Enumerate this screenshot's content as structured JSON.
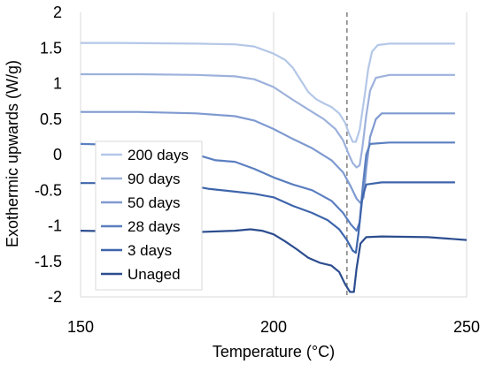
{
  "chart_data": {
    "type": "line",
    "title": "",
    "xlabel": "Temperature (°C)",
    "ylabel": "Exothermic upwards (W/g)",
    "xlim": [
      150,
      250
    ],
    "ylim": [
      -2,
      2
    ],
    "x_ticks": [
      150,
      200,
      250
    ],
    "y_ticks": [
      2,
      1.5,
      1,
      0.5,
      0,
      -0.5,
      -1,
      -1.5,
      -2
    ],
    "x_tick_labels": [
      "150",
      "200",
      "250"
    ],
    "y_tick_labels": [
      "2",
      "1.5",
      "1",
      "0.5",
      "0",
      "-0.5",
      "-1",
      "-1.5",
      "-2"
    ],
    "grid": "vertical major gridlines",
    "legend_position": "left",
    "reference_line": {
      "x": 219,
      "style": "dashed"
    },
    "series": [
      {
        "name": "200 days",
        "color": "#b4c7e7",
        "points": [
          [
            150,
            1.57
          ],
          [
            160,
            1.57
          ],
          [
            170,
            1.565
          ],
          [
            180,
            1.56
          ],
          [
            185,
            1.555
          ],
          [
            190,
            1.55
          ],
          [
            195,
            1.52
          ],
          [
            200,
            1.42
          ],
          [
            203,
            1.33
          ],
          [
            205,
            1.22
          ],
          [
            207,
            1.05
          ],
          [
            209,
            0.88
          ],
          [
            211,
            0.78
          ],
          [
            213,
            0.72
          ],
          [
            215,
            0.67
          ],
          [
            217,
            0.58
          ],
          [
            218.5,
            0.45
          ],
          [
            219.5,
            0.3
          ],
          [
            220.5,
            0.18
          ],
          [
            221.3,
            0.18
          ],
          [
            222.3,
            0.35
          ],
          [
            223.5,
            0.8
          ],
          [
            224.5,
            1.2
          ],
          [
            225.5,
            1.45
          ],
          [
            227,
            1.54
          ],
          [
            230,
            1.56
          ],
          [
            240,
            1.56
          ],
          [
            247,
            1.56
          ]
        ]
      },
      {
        "name": "90 days",
        "color": "#9db1dc",
        "points": [
          [
            150,
            1.13
          ],
          [
            165,
            1.13
          ],
          [
            180,
            1.12
          ],
          [
            190,
            1.1
          ],
          [
            195,
            1.06
          ],
          [
            200,
            0.95
          ],
          [
            205,
            0.77
          ],
          [
            210,
            0.6
          ],
          [
            213,
            0.5
          ],
          [
            216,
            0.36
          ],
          [
            218,
            0.2
          ],
          [
            219.5,
            0.0
          ],
          [
            220.5,
            -0.12
          ],
          [
            221.5,
            -0.18
          ],
          [
            222.3,
            -0.15
          ],
          [
            223,
            0.1
          ],
          [
            224,
            0.55
          ],
          [
            225,
            0.9
          ],
          [
            226.5,
            1.08
          ],
          [
            230,
            1.12
          ],
          [
            240,
            1.12
          ],
          [
            247,
            1.12
          ]
        ]
      },
      {
        "name": "50 days",
        "color": "#7f9ad0",
        "points": [
          [
            150,
            0.6
          ],
          [
            165,
            0.6
          ],
          [
            180,
            0.58
          ],
          [
            190,
            0.54
          ],
          [
            195,
            0.48
          ],
          [
            200,
            0.36
          ],
          [
            205,
            0.22
          ],
          [
            210,
            0.09
          ],
          [
            215,
            -0.08
          ],
          [
            218,
            -0.25
          ],
          [
            220,
            -0.45
          ],
          [
            221.5,
            -0.62
          ],
          [
            222.5,
            -0.68
          ],
          [
            223.3,
            -0.6
          ],
          [
            224,
            -0.2
          ],
          [
            225,
            0.25
          ],
          [
            226.5,
            0.5
          ],
          [
            228,
            0.58
          ],
          [
            235,
            0.58
          ],
          [
            247,
            0.58
          ]
        ]
      },
      {
        "name": "28 days",
        "color": "#5b7fc0",
        "points": [
          [
            150,
            0.15
          ],
          [
            165,
            0.13
          ],
          [
            175,
            0.08
          ],
          [
            185,
            -0.08
          ],
          [
            190,
            -0.1
          ],
          [
            195,
            -0.2
          ],
          [
            200,
            -0.32
          ],
          [
            205,
            -0.42
          ],
          [
            210,
            -0.5
          ],
          [
            215,
            -0.65
          ],
          [
            218,
            -0.82
          ],
          [
            220,
            -0.98
          ],
          [
            221.5,
            -1.07
          ],
          [
            222.3,
            -0.95
          ],
          [
            223,
            -0.5
          ],
          [
            224,
            0.0
          ],
          [
            225,
            0.15
          ],
          [
            230,
            0.17
          ],
          [
            240,
            0.17
          ],
          [
            247,
            0.17
          ]
        ]
      },
      {
        "name": "3 days",
        "color": "#3e65ab",
        "points": [
          [
            150,
            -0.4
          ],
          [
            165,
            -0.4
          ],
          [
            175,
            -0.4
          ],
          [
            183,
            -0.48
          ],
          [
            190,
            -0.52
          ],
          [
            195,
            -0.55
          ],
          [
            200,
            -0.6
          ],
          [
            205,
            -0.72
          ],
          [
            210,
            -0.82
          ],
          [
            214,
            -0.92
          ],
          [
            217,
            -1.05
          ],
          [
            219,
            -1.2
          ],
          [
            220.5,
            -1.35
          ],
          [
            221.3,
            -1.38
          ],
          [
            222,
            -1.1
          ],
          [
            223,
            -0.6
          ],
          [
            224,
            -0.42
          ],
          [
            228,
            -0.39
          ],
          [
            240,
            -0.39
          ],
          [
            247,
            -0.39
          ]
        ]
      },
      {
        "name": "Unaged",
        "color": "#2c4d8f",
        "points": [
          [
            150,
            -1.07
          ],
          [
            160,
            -1.08
          ],
          [
            170,
            -1.09
          ],
          [
            180,
            -1.09
          ],
          [
            190,
            -1.07
          ],
          [
            194,
            -1.05
          ],
          [
            197,
            -1.07
          ],
          [
            200,
            -1.12
          ],
          [
            203,
            -1.22
          ],
          [
            206,
            -1.33
          ],
          [
            209,
            -1.45
          ],
          [
            212,
            -1.52
          ],
          [
            215,
            -1.56
          ],
          [
            217,
            -1.65
          ],
          [
            218.5,
            -1.82
          ],
          [
            219.8,
            -1.93
          ],
          [
            220.8,
            -1.93
          ],
          [
            221.5,
            -1.6
          ],
          [
            222.5,
            -1.25
          ],
          [
            224,
            -1.16
          ],
          [
            228,
            -1.15
          ],
          [
            240,
            -1.16
          ],
          [
            245,
            -1.18
          ],
          [
            250,
            -1.2
          ]
        ]
      }
    ]
  }
}
